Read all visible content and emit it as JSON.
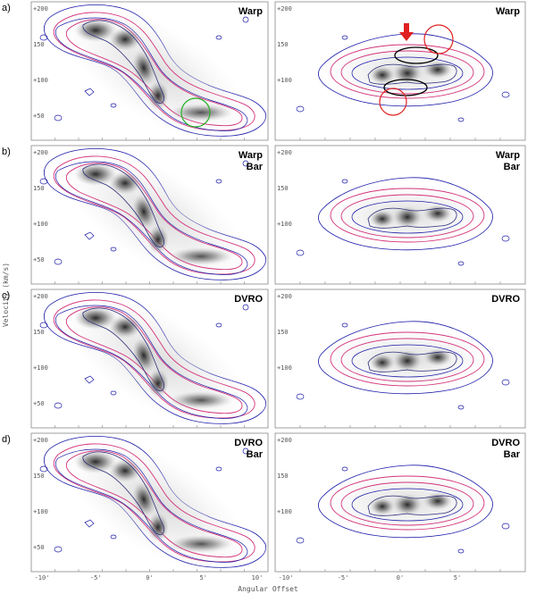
{
  "figure": {
    "y_axis_label": "Velocity (km/s)",
    "x_axis_label": "Angular Offset",
    "y_ticks": [
      "+200",
      "150",
      "+100",
      "+50"
    ],
    "x_ticks_left": [
      "-10'",
      "-5'",
      "0'",
      "5'",
      "10'"
    ],
    "x_ticks_right": [
      "-10'",
      "-5'",
      "0'",
      "5'"
    ],
    "rows": [
      {
        "label": "a)",
        "left_tag": "Warp",
        "right_tag": "Warp"
      },
      {
        "label": "b)",
        "left_tag": "Warp\nBar",
        "right_tag": "Warp\nBar"
      },
      {
        "label": "c)",
        "left_tag": "DVRO",
        "right_tag": "DVRO"
      },
      {
        "label": "d)",
        "left_tag": "DVRO\nBar",
        "right_tag": "DVRO\nBar"
      }
    ],
    "colors": {
      "observed_contour": "#1a1aa8",
      "model_contour": "#d4347a",
      "green_circle": "#22b022",
      "red_marker": "#e02020",
      "black_ellipse": "#000000"
    }
  }
}
